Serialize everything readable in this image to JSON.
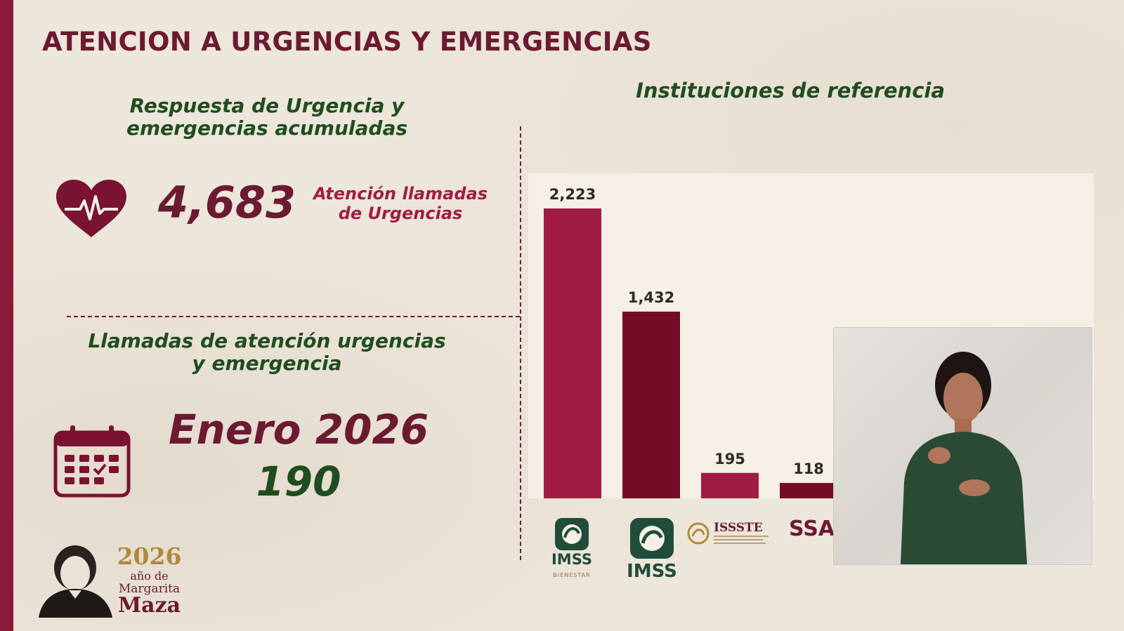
{
  "header": {
    "title": "ATENCION A URGENCIAS Y EMERGENCIAS"
  },
  "accumulated": {
    "title": "Respuesta de Urgencia y emergencias acumuladas",
    "value": "4,683",
    "label_line1": "Atención llamadas",
    "label_line2": "de Urgencias",
    "icon": "heart-pulse-icon"
  },
  "monthly": {
    "title_line1": "Llamadas de atención urgencias",
    "title_line2": "y emergencia",
    "month": "Enero 2026",
    "value": "190",
    "icon": "calendar-check-icon"
  },
  "chart_data": {
    "type": "bar",
    "title": "Instituciones de referencia",
    "categories": [
      "IMSS BIENESTAR",
      "IMSS",
      "ISSSTE",
      "SSA"
    ],
    "values": [
      2223,
      1432,
      195,
      118
    ],
    "value_labels": [
      "2,223",
      "1,432",
      "195",
      "118"
    ],
    "colors": [
      "#a01c45",
      "#730c27",
      "#a01c45",
      "#730c27"
    ],
    "ylim": [
      0,
      2400
    ],
    "grid": false
  },
  "logos": {
    "imss_bienestar_text": "IMSS",
    "imss_bienestar_sub": "BIENESTAR",
    "imss_text": "IMSS",
    "issste_text": "ISSSTE",
    "ssa_text": "SSA"
  },
  "footer_badge": {
    "year": "2026",
    "line1": "año de",
    "line2": "Margarita",
    "line3": "Maza"
  },
  "colors": {
    "accent": "#8b1a3a",
    "green": "#1f4d1f",
    "background": "#ede6da"
  }
}
